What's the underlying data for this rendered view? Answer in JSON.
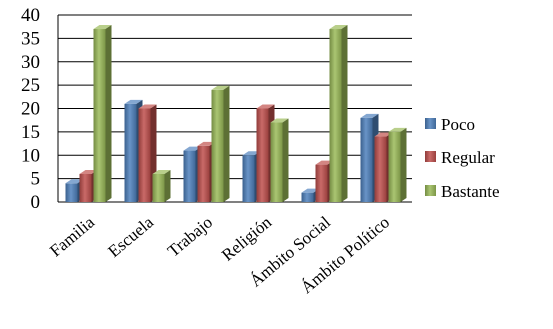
{
  "chart_data": {
    "type": "bar",
    "title": "",
    "xlabel": "",
    "ylabel": "",
    "categories": [
      "Familia",
      "Escuela",
      "Trabajo",
      "Religión",
      "Ámbito Social",
      "Ámbito Político"
    ],
    "series": [
      {
        "name": "Poco",
        "values": [
          4,
          21,
          11,
          10,
          2,
          18
        ],
        "color": "#4F81BD"
      },
      {
        "name": "Regular",
        "values": [
          6,
          20,
          12,
          20,
          8,
          14
        ],
        "color": "#C0504D"
      },
      {
        "name": "Bastante",
        "values": [
          37,
          6,
          24,
          17,
          37,
          15
        ],
        "color": "#9BBB59"
      }
    ],
    "ylim": [
      0,
      40
    ],
    "yticks": [
      "0",
      "5",
      "10",
      "15",
      "20",
      "25",
      "30",
      "35",
      "40"
    ],
    "grid": true,
    "legend_position": "right",
    "style": "3d-clustered-column"
  }
}
